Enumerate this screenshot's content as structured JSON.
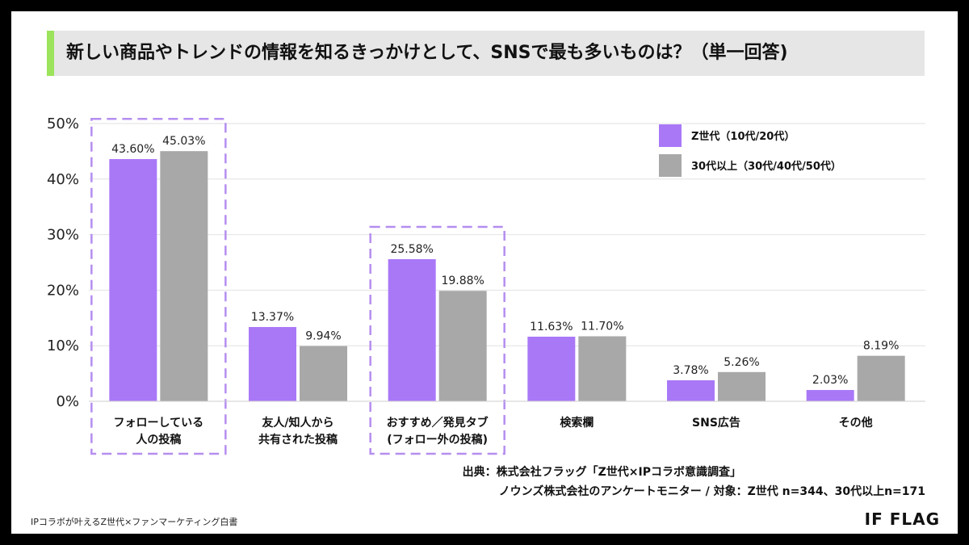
{
  "title": "新しい商品やトレンドの情報を知るきっかけとして、SNSで最も多いものは？（単一回答)",
  "source_line1": "出典：株式会社フラッグ「Z世代×IPコラボ意識調査」",
  "source_line2": "ノウンズ株式会社のアンケートモニター / 対象：Z世代 n=344、30代以上n=171",
  "footer_left": "IPコラボが叶えるZ世代×ファンマーケティング白書",
  "footer_logo": "IF FLAG",
  "colors": {
    "series1": "#a978f7",
    "series2": "#a8a8a8",
    "highlight": "#b58ef0",
    "title_accent": "#9be35a"
  },
  "chart_data": {
    "type": "bar",
    "categories": [
      [
        "フォローしている",
        "人の投稿"
      ],
      [
        "友人/知人から",
        "共有された投稿"
      ],
      [
        "おすすめ／発見タブ",
        "(フォロー外の投稿)"
      ],
      [
        "検索欄"
      ],
      [
        "SNS広告"
      ],
      [
        "その他"
      ]
    ],
    "series": [
      {
        "name": "Z世代（10代/20代）",
        "values": [
          43.6,
          13.37,
          25.58,
          11.63,
          3.78,
          2.03
        ],
        "labels": [
          "43.60%",
          "13.37%",
          "25.58%",
          "11.63%",
          "3.78%",
          "2.03%"
        ]
      },
      {
        "name": "30代以上（30代/40代/50代）",
        "values": [
          45.03,
          9.94,
          19.88,
          11.7,
          5.26,
          8.19
        ],
        "labels": [
          "45.03%",
          "9.94%",
          "19.88%",
          "11.70%",
          "5.26%",
          "8.19%"
        ]
      }
    ],
    "y_ticks": [
      "0%",
      "10%",
      "20%",
      "30%",
      "40%",
      "50%"
    ],
    "ylim": [
      0,
      50
    ],
    "grid": true,
    "legend_position": "top-right",
    "highlighted_categories": [
      0,
      2
    ]
  }
}
